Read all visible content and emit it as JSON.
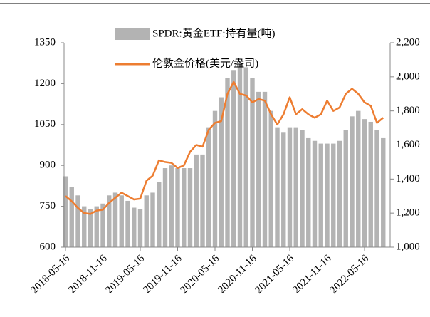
{
  "chart_data": {
    "type": "bar_line",
    "categories": [
      "2018-05-16",
      null,
      null,
      null,
      null,
      null,
      "2018-11-16",
      null,
      null,
      null,
      null,
      null,
      "2019-05-16",
      null,
      null,
      null,
      null,
      null,
      "2019-11-16",
      null,
      null,
      null,
      null,
      null,
      "2020-05-16",
      null,
      null,
      null,
      null,
      null,
      "2020-11-16",
      null,
      null,
      null,
      null,
      null,
      "2021-05-16",
      null,
      null,
      null,
      null,
      null,
      "2021-11-16",
      null,
      null,
      null,
      null,
      null,
      "2022-05-16",
      null,
      null,
      null
    ],
    "series": [
      {
        "name": "SPDR:黄金ETF:持有量(吨)",
        "color": "#b3b3b3",
        "type": "bar",
        "axis": "y",
        "values": [
          860,
          820,
          790,
          750,
          740,
          750,
          760,
          790,
          800,
          790,
          770,
          745,
          740,
          790,
          800,
          840,
          890,
          900,
          890,
          890,
          890,
          940,
          940,
          1040,
          1100,
          1150,
          1220,
          1250,
          1270,
          1260,
          1220,
          1170,
          1170,
          1100,
          1040,
          1020,
          1040,
          1040,
          1030,
          1000,
          990,
          980,
          980,
          980,
          990,
          1030,
          1080,
          1100,
          1070,
          1060,
          1030,
          1000
        ]
      },
      {
        "name": "伦敦金价格(美元/盎司)",
        "color": "#ed7d31",
        "type": "line",
        "axis": "y2",
        "values": [
          1300,
          1270,
          1230,
          1200,
          1195,
          1215,
          1220,
          1260,
          1290,
          1320,
          1300,
          1280,
          1285,
          1390,
          1420,
          1510,
          1500,
          1495,
          1465,
          1480,
          1560,
          1600,
          1590,
          1690,
          1730,
          1740,
          1900,
          1970,
          1900,
          1890,
          1850,
          1870,
          1860,
          1780,
          1720,
          1780,
          1880,
          1780,
          1810,
          1780,
          1760,
          1780,
          1860,
          1800,
          1820,
          1900,
          1930,
          1900,
          1850,
          1830,
          1730,
          1760
        ]
      }
    ],
    "ylim": [
      600,
      1350
    ],
    "yticks": [
      600,
      750,
      900,
      1050,
      1200,
      1350
    ],
    "y2lim": [
      1000,
      2200
    ],
    "y2ticks": [
      {
        "value": 1000,
        "label": "1,000"
      },
      {
        "value": 1200,
        "label": "1,200"
      },
      {
        "value": 1400,
        "label": "1,400"
      },
      {
        "value": 1600,
        "label": "1,600"
      },
      {
        "value": 1800,
        "label": "1,800"
      },
      {
        "value": 2000,
        "label": "2,000"
      },
      {
        "value": 2200,
        "label": "2,200"
      }
    ],
    "legend": "top"
  }
}
